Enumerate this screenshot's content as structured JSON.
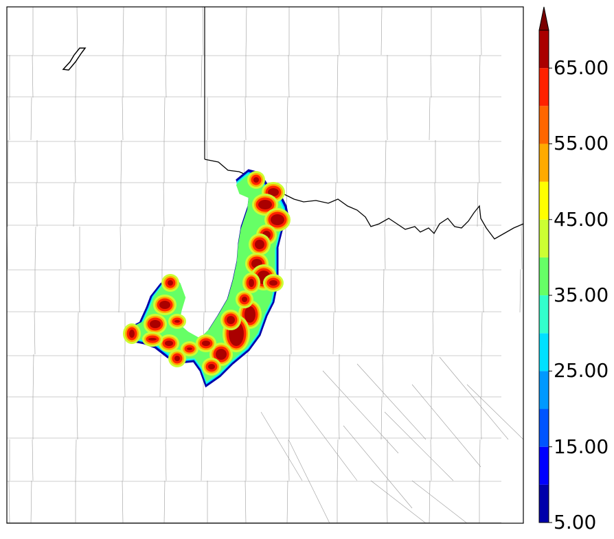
{
  "colorbar": {
    "levels": [
      5,
      10,
      15,
      20,
      25,
      30,
      35,
      40,
      45,
      50,
      55,
      60,
      65,
      70
    ],
    "colors": [
      "#0000aa",
      "#0000ff",
      "#0055ff",
      "#0099ff",
      "#00e0ff",
      "#33ffcc",
      "#66ff66",
      "#ccff33",
      "#ffff00",
      "#ffaa00",
      "#ff6600",
      "#ff2200",
      "#aa0000"
    ],
    "extend_color": "#7a0000",
    "tick_labels": [
      "5.00",
      "15.00",
      "25.00",
      "35.00",
      "45.00",
      "55.00",
      "65.00"
    ]
  },
  "map": {
    "features": [
      "county-lines",
      "state-boundary",
      "red-river",
      "lake"
    ],
    "field": "storm-swath"
  }
}
